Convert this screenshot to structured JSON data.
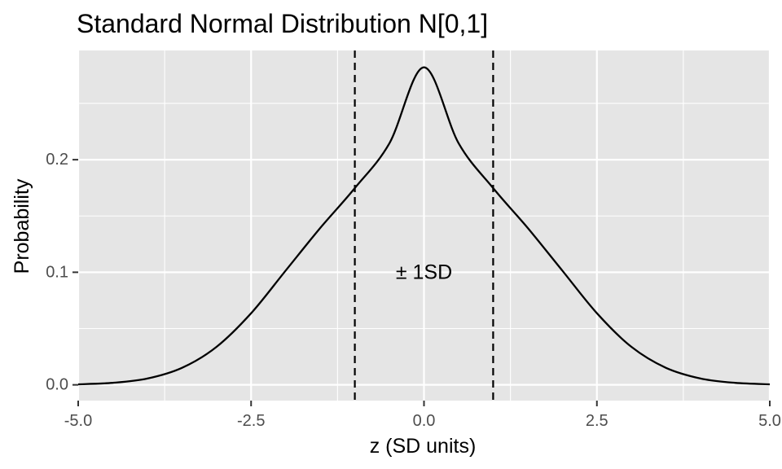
{
  "chart_data": {
    "type": "line",
    "title": "Standard Normal Distribution N[0,1]",
    "xlabel": "z (SD units)",
    "ylabel": "Probability",
    "xlim": [
      -5.0,
      5.0
    ],
    "ylim": [
      -0.014,
      0.297
    ],
    "x_ticks": [
      -5.0,
      -2.5,
      0.0,
      2.5,
      5.0
    ],
    "x_tick_labels": [
      "-5.0",
      "-2.5",
      "0.0",
      "2.5",
      "5.0"
    ],
    "y_ticks": [
      0.0,
      0.1,
      0.2
    ],
    "y_tick_labels": [
      "0.0",
      "0.1",
      "0.2"
    ],
    "grid": true,
    "series": [
      {
        "x": [
          -5.0,
          -4.5,
          -4.0,
          -3.5,
          -3.0,
          -2.5,
          -2.0,
          -1.5,
          -1.0,
          -0.5,
          0.0,
          0.5,
          1.0,
          1.5,
          2.0,
          2.5,
          3.0,
          3.5,
          4.0,
          4.5,
          5.0
        ],
        "y": [
          0.0005,
          0.0018,
          0.0056,
          0.0151,
          0.0337,
          0.0636,
          0.1015,
          0.1393,
          0.1748,
          0.2146,
          0.282,
          0.2146,
          0.1748,
          0.1393,
          0.1015,
          0.0636,
          0.0337,
          0.0151,
          0.0056,
          0.0018,
          0.0005
        ]
      }
    ],
    "vlines": [
      -1.0,
      1.0
    ],
    "annotations": [
      {
        "text": "± 1SD",
        "x": 0.0,
        "y": 0.1
      }
    ],
    "colors": {
      "panel_background": "#e5e5e5",
      "grid": "#ffffff",
      "line": "#000000"
    }
  }
}
